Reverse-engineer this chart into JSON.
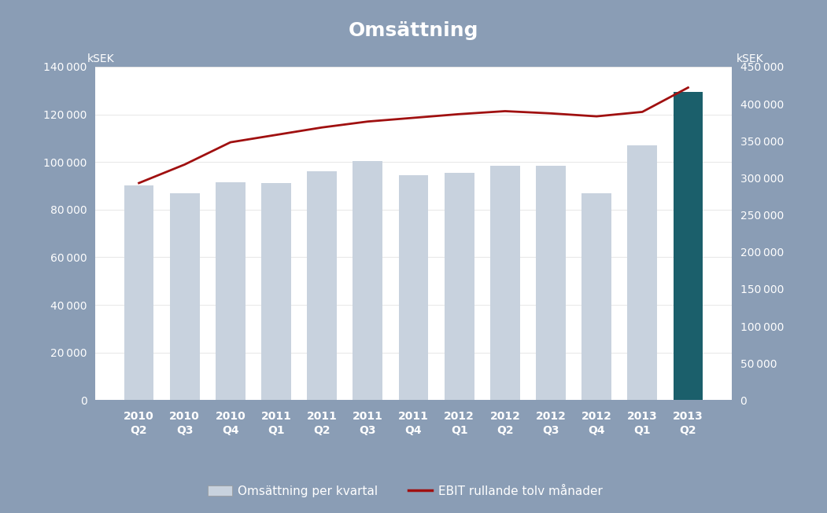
{
  "title": "Omsättning",
  "title_fontsize": 18,
  "background_color": "#8a9db5",
  "plot_bg_color": "#ffffff",
  "categories": [
    "2010\nQ2",
    "2010\nQ3",
    "2010\nQ4",
    "2011\nQ1",
    "2011\nQ2",
    "2011\nQ3",
    "2011\nQ4",
    "2012\nQ1",
    "2012\nQ2",
    "2012\nQ3",
    "2012\nQ4",
    "2013\nQ1",
    "2013\nQ2"
  ],
  "bar_values": [
    90000,
    87000,
    91500,
    91000,
    96000,
    100500,
    94500,
    95500,
    98500,
    98500,
    87000,
    107000,
    129500
  ],
  "bar_colors_regular": "#c8d2de",
  "bar_color_last": "#1b5f6b",
  "line_values": [
    293000,
    318000,
    348000,
    358000,
    368000,
    376000,
    381000,
    386000,
    390000,
    387000,
    383000,
    389000,
    421800
  ],
  "line_color": "#a01010",
  "line_width": 2.0,
  "left_ylabel": "kSEK",
  "right_ylabel": "kSEK",
  "left_ylim": [
    0,
    140000
  ],
  "right_ylim": [
    0,
    450000
  ],
  "left_yticks": [
    0,
    20000,
    40000,
    60000,
    80000,
    100000,
    120000,
    140000
  ],
  "right_yticks": [
    0,
    50000,
    100000,
    150000,
    200000,
    250000,
    300000,
    350000,
    400000,
    450000
  ],
  "legend_bar_label": "Omsättning per kvartal",
  "legend_line_label": "EBIT rullande tolv månader",
  "tick_color": "#ffffff",
  "label_color": "#ffffff",
  "axis_label_size": 10,
  "tick_label_size": 10,
  "grid_color": "#dddddd"
}
